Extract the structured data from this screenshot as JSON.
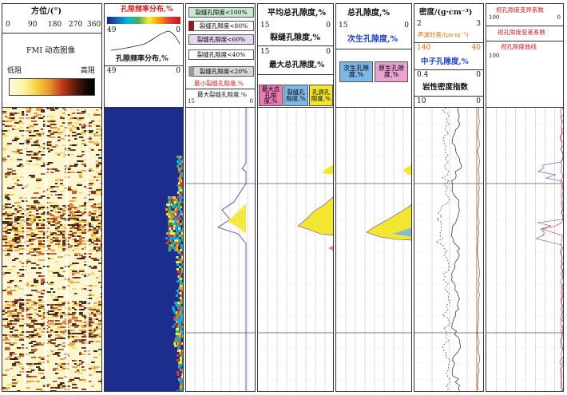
{
  "colors": {
    "red": "#c82020",
    "blue": "#1d3fbf",
    "yellow": "#f2e630",
    "orange": "#e06a10",
    "purple": "#6040a0"
  },
  "tracks": {
    "t1": {
      "title": "方位/(°)",
      "ticks": [
        "0",
        "90",
        "180",
        "270",
        "360"
      ],
      "img_label": "FMI 动态图像",
      "low": "低阻",
      "high": "高阻"
    },
    "t2": {
      "title1": "孔隙频率分布,%",
      "v1l": "49",
      "v1r": "0",
      "title2": "孔隙频率分布,%",
      "v2l": "49",
      "v2r": "0"
    },
    "t3": {
      "rows": [
        "裂缝孔隙度<100%",
        "裂缝孔隙度<80%",
        "裂缝孔隙度<60%",
        "裂缝孔隙度<40%",
        "裂缝孔隙度<20%"
      ],
      "red_label": "最小裂缝孔隙度,%",
      "max_label": "最大裂缝孔隙度,%",
      "l": "15",
      "r": "0"
    },
    "t4": {
      "title": "平均总孔隙度,%",
      "a_l": "15",
      "a_r": "0",
      "b_title": "裂缝孔隙度,%",
      "b_l": "15",
      "b_r": "0",
      "c_title": "最大总孔隙度,%",
      "boxes": [
        "最大总孔隙度,%",
        "裂缝孔隙度,%",
        "孔洞孔隙度,%"
      ]
    },
    "t5": {
      "title": "总孔隙度,%",
      "l": "15",
      "r": "0",
      "sub": "次生孔隙度,%",
      "boxes": [
        "次生孔隙度,%",
        "原生孔隙度,%"
      ]
    },
    "t6": {
      "title": "密度/(g·cm⁻³)",
      "d_l": "2",
      "d_r": "3",
      "sonic": "声波时差/(μs·m⁻¹)",
      "s_l": "140",
      "s_r": "40",
      "neutron": "中子孔隙度,%",
      "n_l": "0.4",
      "n_r": "0",
      "rock": "岩性密度指数",
      "r_l": "10",
      "r_r": "0"
    },
    "t7": {
      "title1": "视孔隙度变异系数",
      "v1l": "100",
      "v1r": "0",
      "title2": "视孔隙度变差系数",
      "title3": "视孔隙度曲线",
      "v3l": "100"
    }
  }
}
